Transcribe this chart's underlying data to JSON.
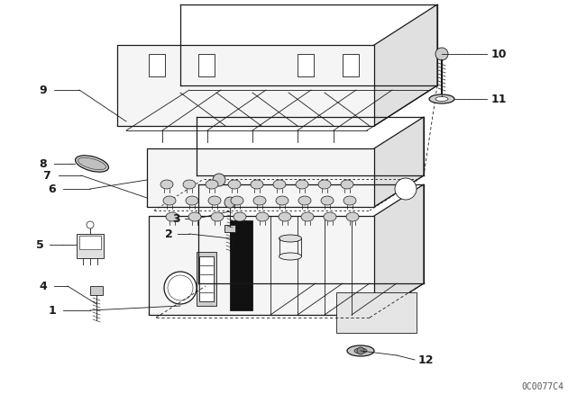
{
  "bg_color": "#ffffff",
  "line_color": "#1a1a1a",
  "watermark": "0C0077C4",
  "fig_width": 6.4,
  "fig_height": 4.48,
  "dpi": 100
}
